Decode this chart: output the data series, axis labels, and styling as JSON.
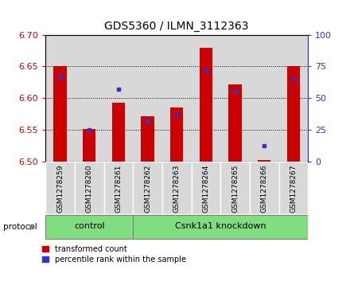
{
  "title": "GDS5360 / ILMN_3112363",
  "samples": [
    "GSM1278259",
    "GSM1278260",
    "GSM1278261",
    "GSM1278262",
    "GSM1278263",
    "GSM1278264",
    "GSM1278265",
    "GSM1278266",
    "GSM1278267"
  ],
  "red_values": [
    6.65,
    6.552,
    6.593,
    6.572,
    6.585,
    6.68,
    6.622,
    6.503,
    6.65
  ],
  "blue_percentiles": [
    67,
    25,
    57,
    32,
    37,
    72,
    55,
    13,
    65
  ],
  "y_min": 6.5,
  "y_max": 6.7,
  "y_ticks": [
    6.5,
    6.55,
    6.6,
    6.65,
    6.7
  ],
  "right_y_ticks": [
    0,
    25,
    50,
    75,
    100
  ],
  "groups": [
    {
      "label": "control",
      "start": 0,
      "end": 3
    },
    {
      "label": "Csnk1a1 knockdown",
      "start": 3,
      "end": 9
    }
  ],
  "protocol_label": "protocol",
  "bar_color": "#cc0000",
  "dot_color": "#3333cc",
  "bar_width": 0.45,
  "col_bg_color": "#d8d8d8",
  "group_color": "#80dd80",
  "legend_red": "transformed count",
  "legend_blue": "percentile rank within the sample",
  "left_axis_color": "#cc0000",
  "right_axis_color": "#3333cc",
  "title_fontsize": 10
}
